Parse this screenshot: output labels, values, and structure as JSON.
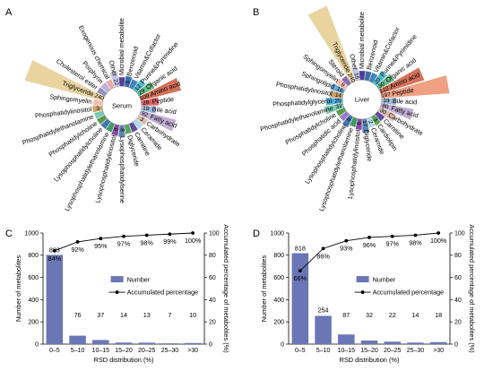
{
  "figure": {
    "panel_a": "A",
    "panel_b": "B",
    "panel_c": "C",
    "panel_d": "D"
  },
  "chart_data": [
    {
      "type": "radial-bar",
      "panel": "A",
      "center_label": "Serum",
      "categories": [
        "Microbial metabolite",
        "Benzenoid",
        "Vitamin&Cofactor",
        "Purine&Pyrimidine",
        "Organic acid",
        "Amino acid",
        "Peptide",
        "Bile acid",
        "Fatty acid",
        "Carbohydrate",
        "Ceramide",
        "Carnitine",
        "Diglyceride",
        "Lysophosphatidylserine",
        "Lysophosphatidylinositol",
        "Lysophosphatidylethanolamine",
        "Lysophosphatidylcholine",
        "Phosphatidylcholine",
        "Phosphatidylethanolamine",
        "Phosphatidylinositol",
        "Sphingomyelin",
        "Triglyceride",
        "Cholesterol ester",
        "Porphyrin",
        "Exogenous chemical",
        "Other"
      ],
      "values": [
        null,
        5,
        null,
        12,
        29,
        109,
        28,
        19,
        92,
        3,
        null,
        null,
        null,
        8,
        6,
        null,
        null,
        null,
        null,
        3,
        null,
        240,
        null,
        null,
        null,
        22
      ],
      "colors": [
        "#3c2b8f",
        "#2a5d9b",
        "#2e76b9",
        "#3cb3c8",
        "#58b27a",
        "#c23b1c",
        "#d94f54",
        "#8fb2d4",
        "#a98fc2",
        "#d9b4a2",
        "#a7d3e5",
        "#4d3a97",
        "#4e9b48",
        "#4c78a6",
        "#7b3996",
        "#2e8f52",
        "#3266a8",
        "#4d8e3f",
        "#6ac3ab",
        "#c79a5e",
        "#f0b8a8",
        "#e0c27a",
        "#8a8ab0",
        "#b7a5d8",
        "#e7a19a",
        "#bfbfe0"
      ]
    },
    {
      "type": "radial-bar",
      "panel": "B",
      "center_label": "Liver",
      "categories": [
        "Microbial metabolite",
        "Benzenoid",
        "Vitamin&Cofactor",
        "Purine&Pyrimidine",
        "Organic acid",
        "Amino acid",
        "Peptide",
        "Bile acid",
        "Fatty acid",
        "Carbohydrate",
        "Carnitine",
        "Cardiolipin",
        "Ceramide",
        "Diglyceride",
        "Lysophosphatidylinositol",
        "Lysophosphatidylethanolamine",
        "Lysophosphatidylcholine",
        "Phosphatidic acid",
        "Phosphatidylcholine",
        "Phosphatidylethanolamine",
        "Phosphatidylglycerol",
        "Phosphatidylinositol",
        "Sphingolipid",
        "Sphingomyelin",
        "Steroid",
        "Triglyceride",
        "Other"
      ],
      "values": [
        null,
        null,
        null,
        20,
        30,
        122,
        197,
        19,
        80,
        30,
        null,
        3,
        2,
        17,
        6,
        null,
        9,
        null,
        null,
        32,
        25,
        14,
        16,
        9,
        null,
        240,
        15
      ],
      "colors": [
        "#3c2b8f",
        "#2a5d9b",
        "#2e76b9",
        "#3cb3c8",
        "#58b27a",
        "#c23b1c",
        "#e97a52",
        "#8fb2d4",
        "#a98fc2",
        "#d9b4a2",
        "#4d3a97",
        "#4e9b48",
        "#a7d3e5",
        "#4c78a6",
        "#7b3996",
        "#2e8f52",
        "#3266a8",
        "#8e6bbf",
        "#4d8e3f",
        "#6ac3ab",
        "#3d9fd0",
        "#c79a5e",
        "#5aa0cc",
        "#f0b8a8",
        "#7a5aa8",
        "#e0c27a",
        "#bfbfe0"
      ]
    },
    {
      "type": "bar",
      "panel": "C",
      "categories": [
        "0–5",
        "5–10",
        "10–15",
        "15–20",
        "20–25",
        "25–30",
        ">30"
      ],
      "series": [
        {
          "name": "Number",
          "type": "bar",
          "values": [
            803,
            76,
            37,
            14,
            13,
            7,
            10
          ],
          "labels": [
            "803",
            "76",
            "37",
            "14",
            "13",
            "7",
            "10"
          ]
        },
        {
          "name": "Accumulated percentage",
          "type": "line",
          "values": [
            84,
            92,
            95,
            97,
            98,
            99,
            100
          ],
          "labels": [
            "84%",
            "92%",
            "95%",
            "97%",
            "98%",
            "99%",
            "100%"
          ]
        }
      ],
      "xlabel": "RSD distribution (%)",
      "ylabel": "Number of metabolites",
      "y2label": "Accumulated percentage of metabolites (%)",
      "ylim": [
        0,
        1000
      ],
      "yticks": [
        "0",
        "200",
        "400",
        "600",
        "800",
        "1000"
      ],
      "y2lim": [
        0,
        100
      ],
      "y2ticks": [
        "0",
        "20",
        "40",
        "60",
        "80",
        "100"
      ],
      "legend": "center-right",
      "grid": false
    },
    {
      "type": "bar",
      "panel": "D",
      "categories": [
        "0–5",
        "5–10",
        "10–15",
        "15–20",
        "20–25",
        "25–30",
        ">30"
      ],
      "series": [
        {
          "name": "Number",
          "type": "bar",
          "values": [
            818,
            254,
            87,
            32,
            22,
            14,
            18
          ],
          "labels": [
            "818",
            "254",
            "87",
            "32",
            "22",
            "14",
            "18"
          ]
        },
        {
          "name": "Accumulated percentage",
          "type": "line",
          "values": [
            66,
            86,
            93,
            96,
            97,
            98,
            100
          ],
          "labels": [
            "66%",
            "86%",
            "93%",
            "96%",
            "97%",
            "98%",
            "100%"
          ]
        }
      ],
      "xlabel": "RSD distribution (%)",
      "ylabel": "Number of metabolites",
      "y2label": "Accumulated percentage of metabolites (%)",
      "ylim": [
        0,
        1000
      ],
      "yticks": [
        "0",
        "200",
        "400",
        "600",
        "800",
        "1000"
      ],
      "y2lim": [
        0,
        100
      ],
      "y2ticks": [
        "0",
        "20",
        "40",
        "60",
        "80",
        "100"
      ],
      "legend": "center-right",
      "grid": false
    }
  ]
}
